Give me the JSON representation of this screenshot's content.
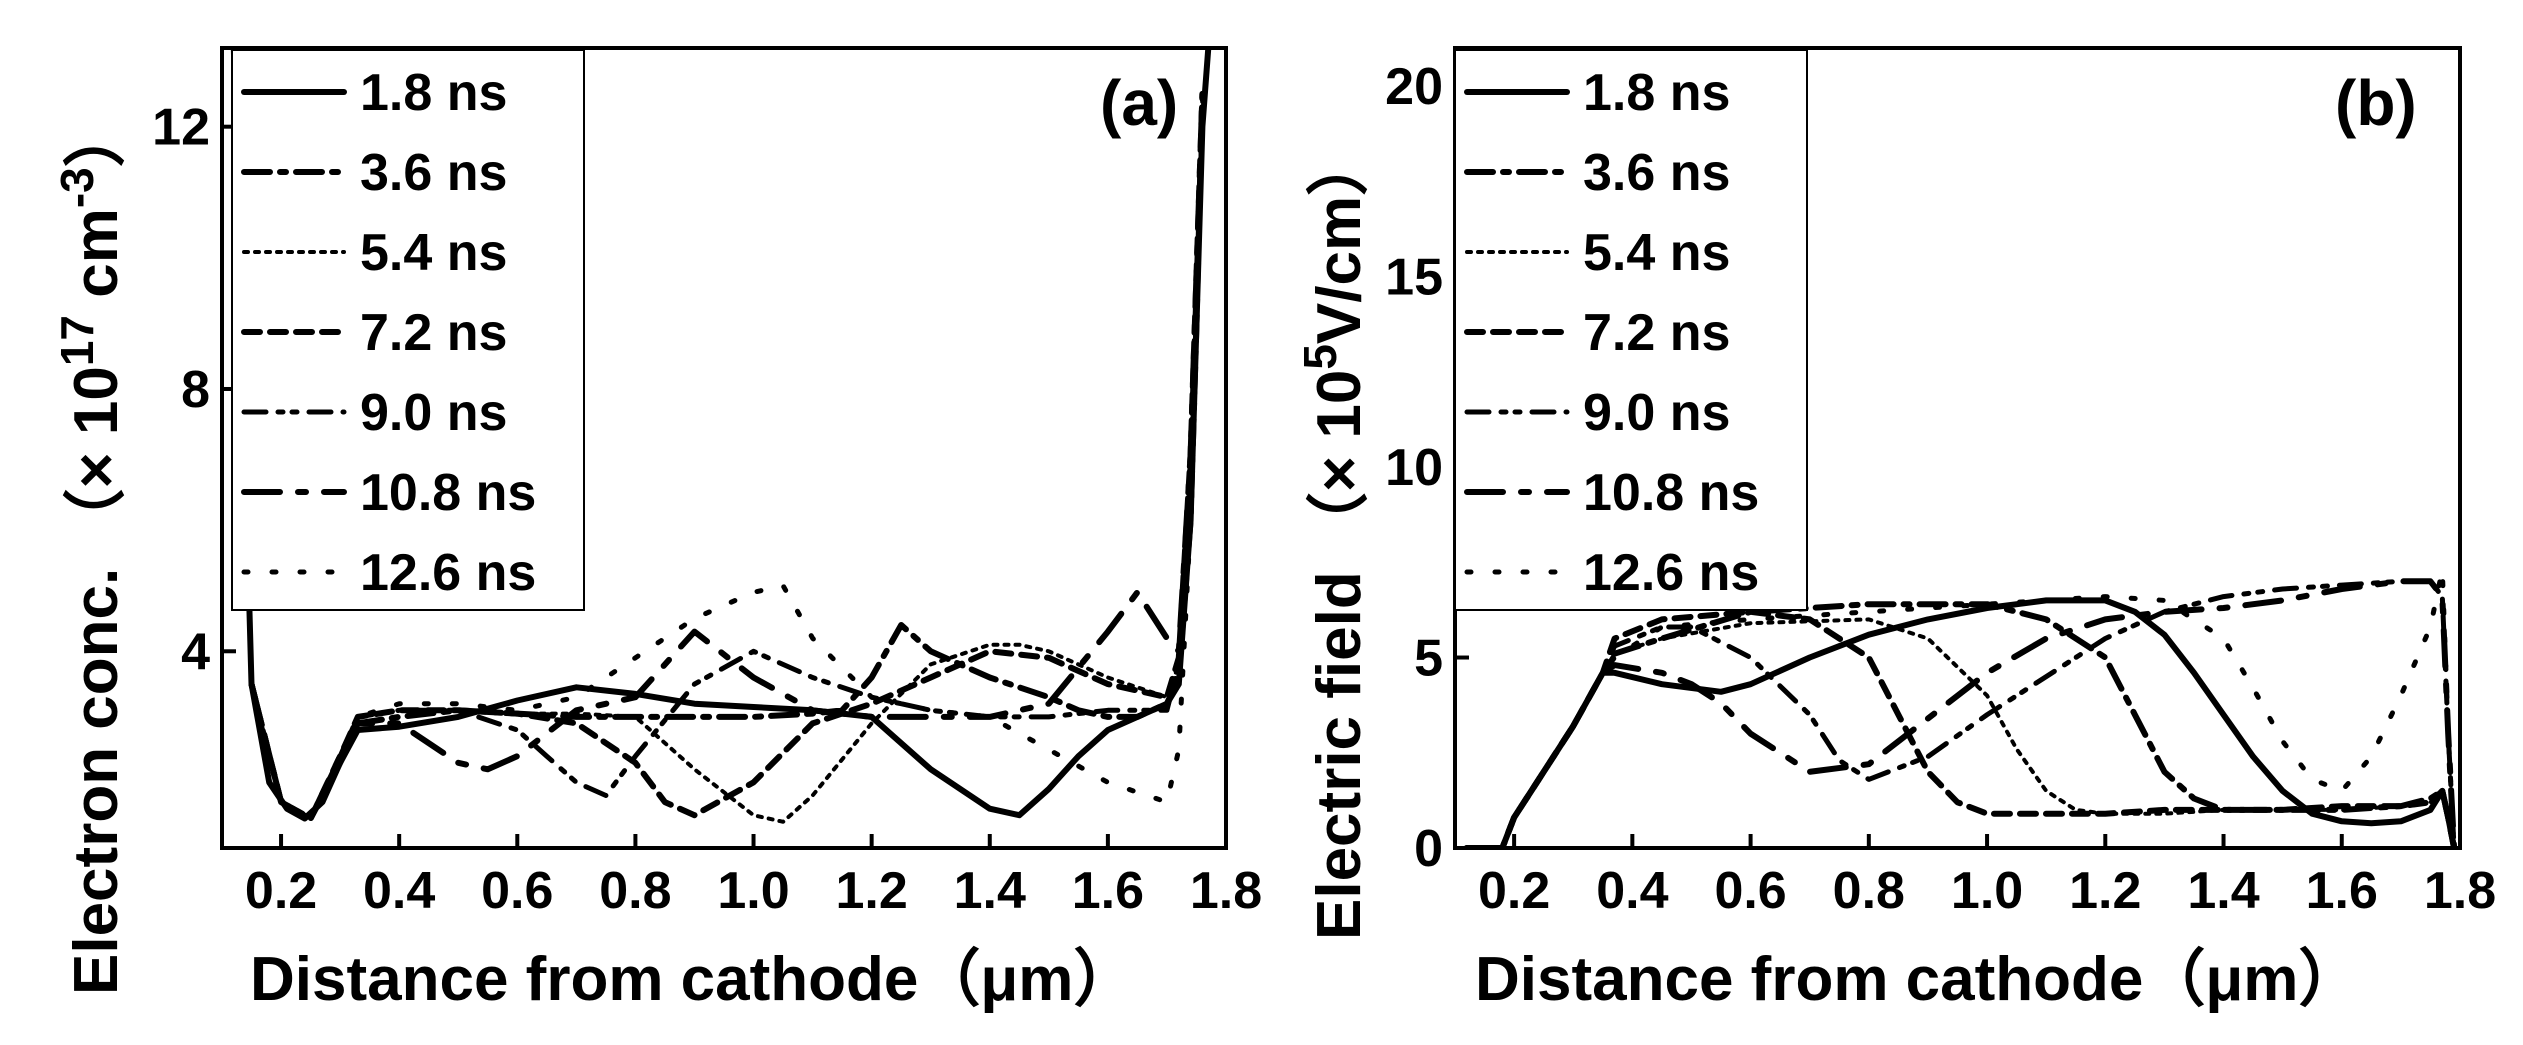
{
  "chart_data": [
    {
      "type": "line",
      "panel_label": "(a)",
      "title": "",
      "xlabel": "Distance from cathode（μm）",
      "ylabel_main": "Electron conc. （× 10",
      "ylabel_sup": "17",
      "ylabel_tail": " cm",
      "ylabel_sup2": "-3",
      "ylabel_close": "）",
      "xlim": [
        0.1,
        1.8
      ],
      "ylim": [
        1,
        13.2
      ],
      "xticks": [
        "0.2",
        "0.4",
        "0.6",
        "0.8",
        "1.0",
        "1.2",
        "1.4",
        "1.6",
        "1.8"
      ],
      "yticks": [
        "4",
        "8",
        "12"
      ],
      "legend_position": "top-left",
      "series": [
        {
          "name": "1.8 ns",
          "x": [
            0.12,
            0.15,
            0.18,
            0.21,
            0.24,
            0.27,
            0.3,
            0.33,
            0.4,
            0.5,
            0.6,
            0.7,
            0.8,
            0.9,
            1.0,
            1.1,
            1.2,
            1.3,
            1.4,
            1.45,
            1.5,
            1.55,
            1.6,
            1.65,
            1.7,
            1.72,
            1.74,
            1.75,
            1.76,
            1.77
          ],
          "y": [
            13.2,
            3.5,
            2.0,
            1.6,
            1.45,
            1.7,
            2.3,
            2.8,
            2.85,
            3.0,
            3.25,
            3.45,
            3.35,
            3.2,
            3.15,
            3.1,
            3.0,
            2.2,
            1.6,
            1.5,
            1.9,
            2.4,
            2.8,
            3.0,
            3.2,
            3.5,
            6.0,
            9.0,
            12.0,
            13.2
          ]
        },
        {
          "name": "3.6 ns",
          "x": [
            0.15,
            0.2,
            0.25,
            0.3,
            0.33,
            0.4,
            0.5,
            0.6,
            0.7,
            0.8,
            0.9,
            1.0,
            1.1,
            1.15,
            1.2,
            1.25,
            1.3,
            1.4,
            1.5,
            1.55,
            1.6,
            1.65,
            1.7,
            1.72,
            1.74,
            1.75,
            1.76
          ],
          "y": [
            3.5,
            1.7,
            1.45,
            2.3,
            2.9,
            3.0,
            3.1,
            3.05,
            3.0,
            3.0,
            3.0,
            3.0,
            3.05,
            3.1,
            3.6,
            4.4,
            4.0,
            3.6,
            3.3,
            3.1,
            3.0,
            3.0,
            3.2,
            3.6,
            6.0,
            9.0,
            12.5
          ]
        },
        {
          "name": "5.4 ns",
          "x": [
            0.15,
            0.2,
            0.25,
            0.3,
            0.33,
            0.4,
            0.5,
            0.6,
            0.7,
            0.8,
            0.9,
            1.0,
            1.05,
            1.1,
            1.2,
            1.3,
            1.4,
            1.45,
            1.5,
            1.6,
            1.7,
            1.72,
            1.74,
            1.76
          ],
          "y": [
            3.5,
            1.7,
            1.45,
            2.4,
            3.0,
            3.1,
            3.1,
            3.05,
            3.05,
            3.0,
            2.2,
            1.5,
            1.4,
            1.8,
            2.9,
            3.8,
            4.1,
            4.1,
            4.0,
            3.6,
            3.3,
            3.8,
            6.5,
            12.5
          ]
        },
        {
          "name": "7.2 ns",
          "x": [
            0.15,
            0.2,
            0.25,
            0.3,
            0.33,
            0.4,
            0.5,
            0.6,
            0.7,
            0.8,
            0.85,
            0.9,
            1.0,
            1.1,
            1.2,
            1.3,
            1.4,
            1.5,
            1.6,
            1.65,
            1.7,
            1.72,
            1.74,
            1.76
          ],
          "y": [
            3.5,
            1.7,
            1.45,
            2.4,
            3.0,
            3.1,
            3.1,
            3.05,
            2.9,
            2.3,
            1.7,
            1.5,
            2.0,
            2.9,
            3.2,
            3.6,
            4.0,
            3.9,
            3.5,
            3.4,
            3.3,
            3.9,
            7.0,
            12.5
          ]
        },
        {
          "name": "9.0 ns",
          "x": [
            0.15,
            0.2,
            0.25,
            0.3,
            0.33,
            0.4,
            0.5,
            0.6,
            0.65,
            0.7,
            0.75,
            0.8,
            0.9,
            1.0,
            1.1,
            1.2,
            1.3,
            1.4,
            1.5,
            1.6,
            1.7,
            1.72,
            1.74,
            1.76
          ],
          "y": [
            3.5,
            1.7,
            1.45,
            2.4,
            3.0,
            3.1,
            3.1,
            2.8,
            2.4,
            2.0,
            1.8,
            2.4,
            3.5,
            4.0,
            3.6,
            3.3,
            3.1,
            3.0,
            3.0,
            3.1,
            3.1,
            3.8,
            7.0,
            12.5
          ]
        },
        {
          "name": "10.8 ns",
          "x": [
            0.15,
            0.2,
            0.25,
            0.3,
            0.33,
            0.4,
            0.45,
            0.5,
            0.55,
            0.6,
            0.7,
            0.8,
            0.9,
            1.0,
            1.1,
            1.2,
            1.3,
            1.4,
            1.5,
            1.6,
            1.65,
            1.7,
            1.72,
            1.74,
            1.76
          ],
          "y": [
            3.5,
            1.7,
            1.45,
            2.4,
            2.9,
            2.9,
            2.6,
            2.3,
            2.2,
            2.4,
            3.1,
            3.3,
            4.3,
            3.6,
            3.1,
            3.0,
            3.0,
            3.0,
            3.2,
            4.3,
            4.9,
            4.2,
            4.0,
            7.0,
            12.5
          ]
        },
        {
          "name": "12.6 ns",
          "x": [
            0.15,
            0.2,
            0.25,
            0.3,
            0.33,
            0.4,
            0.5,
            0.6,
            0.7,
            0.8,
            0.9,
            1.0,
            1.05,
            1.1,
            1.2,
            1.3,
            1.4,
            1.5,
            1.6,
            1.7,
            1.72,
            1.74,
            1.76
          ],
          "y": [
            3.5,
            1.7,
            1.45,
            2.4,
            3.0,
            3.2,
            3.2,
            3.1,
            3.3,
            3.9,
            4.5,
            4.9,
            5.0,
            4.2,
            3.3,
            3.1,
            3.0,
            2.5,
            2.0,
            1.7,
            2.5,
            6.0,
            12.5
          ]
        }
      ]
    },
    {
      "type": "line",
      "panel_label": "(b)",
      "title": "",
      "xlabel": "Distance from cathode（μm）",
      "ylabel_main": "Electric field （× 10",
      "ylabel_sup": "5",
      "ylabel_tail": "V/cm）",
      "xlim": [
        0.1,
        1.8
      ],
      "ylim": [
        0,
        21
      ],
      "xticks": [
        "0.2",
        "0.4",
        "0.6",
        "0.8",
        "1.0",
        "1.2",
        "1.4",
        "1.6",
        "1.8"
      ],
      "yticks": [
        "0",
        "5",
        "10",
        "15",
        "20"
      ],
      "legend_position": "top-left",
      "series": [
        {
          "name": "1.8 ns",
          "x": [
            0.12,
            0.18,
            0.2,
            0.25,
            0.3,
            0.35,
            0.37,
            0.45,
            0.55,
            0.6,
            0.7,
            0.8,
            0.9,
            1.0,
            1.1,
            1.2,
            1.25,
            1.3,
            1.35,
            1.4,
            1.45,
            1.5,
            1.55,
            1.6,
            1.65,
            1.7,
            1.75,
            1.77,
            1.78,
            1.79
          ],
          "y": [
            0,
            0,
            0.8,
            2.0,
            3.2,
            4.6,
            4.6,
            4.3,
            4.1,
            4.3,
            5.0,
            5.6,
            6.0,
            6.3,
            6.5,
            6.5,
            6.2,
            5.6,
            4.6,
            3.5,
            2.4,
            1.5,
            0.9,
            0.7,
            0.65,
            0.7,
            1.0,
            1.5,
            0.8,
            0
          ]
        },
        {
          "name": "3.6 ns",
          "x": [
            0.12,
            0.18,
            0.2,
            0.25,
            0.3,
            0.35,
            0.37,
            0.45,
            0.6,
            0.8,
            1.0,
            1.1,
            1.2,
            1.25,
            1.3,
            1.35,
            1.4,
            1.5,
            1.6,
            1.7,
            1.75,
            1.77,
            1.78,
            1.79
          ],
          "y": [
            0,
            0,
            0.8,
            2.0,
            3.2,
            4.6,
            5.1,
            5.5,
            6.2,
            6.4,
            6.4,
            6.0,
            5.0,
            3.5,
            2.0,
            1.3,
            1.0,
            1.0,
            1.0,
            1.1,
            1.3,
            1.5,
            0.8,
            0
          ]
        },
        {
          "name": "5.4 ns",
          "x": [
            0.12,
            0.18,
            0.2,
            0.25,
            0.3,
            0.35,
            0.37,
            0.45,
            0.6,
            0.8,
            0.9,
            1.0,
            1.05,
            1.1,
            1.15,
            1.2,
            1.3,
            1.4,
            1.5,
            1.6,
            1.7,
            1.75,
            1.77,
            1.78,
            1.79
          ],
          "y": [
            0,
            0,
            0.8,
            2.0,
            3.2,
            4.6,
            5.1,
            5.5,
            5.9,
            6.0,
            5.5,
            4.0,
            2.6,
            1.5,
            1.0,
            0.9,
            0.9,
            1.0,
            1.0,
            1.0,
            1.1,
            1.2,
            1.5,
            0.8,
            0
          ]
        },
        {
          "name": "7.2 ns",
          "x": [
            0.12,
            0.18,
            0.2,
            0.25,
            0.3,
            0.35,
            0.37,
            0.45,
            0.6,
            0.7,
            0.8,
            0.85,
            0.9,
            0.95,
            1.0,
            1.1,
            1.2,
            1.3,
            1.4,
            1.5,
            1.6,
            1.7,
            1.75,
            1.77,
            1.78,
            1.79
          ],
          "y": [
            0,
            0,
            0.8,
            2.0,
            3.2,
            4.6,
            5.5,
            6.0,
            6.2,
            6.0,
            5.0,
            3.5,
            2.0,
            1.2,
            0.9,
            0.9,
            0.9,
            1.0,
            1.0,
            1.0,
            1.1,
            1.1,
            1.2,
            1.5,
            0.8,
            0
          ]
        },
        {
          "name": "9.0 ns",
          "x": [
            0.12,
            0.18,
            0.2,
            0.25,
            0.3,
            0.35,
            0.37,
            0.45,
            0.5,
            0.6,
            0.7,
            0.75,
            0.8,
            0.9,
            1.0,
            1.1,
            1.2,
            1.3,
            1.4,
            1.5,
            1.6,
            1.7,
            1.75,
            1.77,
            1.78,
            1.79
          ],
          "y": [
            0,
            0,
            0.8,
            2.0,
            3.2,
            4.6,
            5.3,
            5.8,
            5.8,
            5.0,
            3.5,
            2.3,
            1.8,
            2.4,
            3.5,
            4.5,
            5.5,
            6.2,
            6.6,
            6.8,
            6.9,
            7.0,
            7.0,
            6.6,
            3.0,
            0
          ]
        },
        {
          "name": "10.8 ns",
          "x": [
            0.12,
            0.18,
            0.2,
            0.25,
            0.3,
            0.35,
            0.37,
            0.45,
            0.5,
            0.55,
            0.6,
            0.7,
            0.8,
            0.9,
            1.0,
            1.1,
            1.2,
            1.3,
            1.4,
            1.5,
            1.6,
            1.7,
            1.75,
            1.77,
            1.78,
            1.79
          ],
          "y": [
            0,
            0,
            0.8,
            2.0,
            3.2,
            4.6,
            4.8,
            4.6,
            4.3,
            3.8,
            3.0,
            2.0,
            2.2,
            3.4,
            4.6,
            5.5,
            6.0,
            6.2,
            6.3,
            6.5,
            6.8,
            7.0,
            7.0,
            6.6,
            3.0,
            0
          ]
        },
        {
          "name": "12.6 ns",
          "x": [
            0.12,
            0.18,
            0.2,
            0.25,
            0.3,
            0.35,
            0.37,
            0.45,
            0.6,
            0.8,
            1.0,
            1.2,
            1.3,
            1.4,
            1.45,
            1.5,
            1.55,
            1.6,
            1.65,
            1.7,
            1.75,
            1.77,
            1.78,
            1.79
          ],
          "y": [
            0,
            0,
            0.8,
            2.0,
            3.2,
            4.6,
            5.0,
            5.8,
            6.0,
            6.2,
            6.4,
            6.6,
            6.5,
            5.5,
            4.2,
            2.8,
            1.8,
            1.5,
            2.4,
            4.0,
            5.8,
            7.3,
            3.0,
            0
          ]
        }
      ]
    }
  ]
}
